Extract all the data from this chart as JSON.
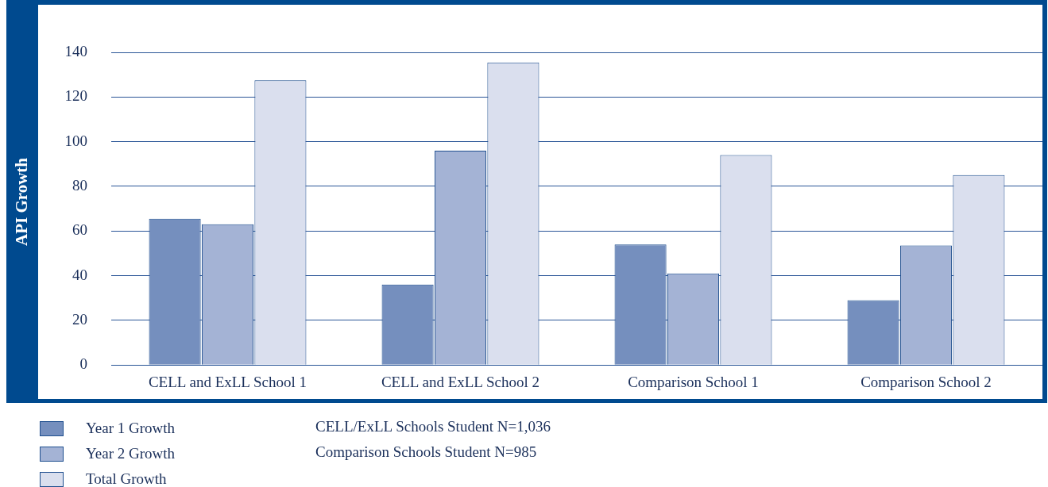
{
  "chart_data": {
    "type": "bar",
    "ylabel": "API Growth",
    "categories": [
      "CELL and ExLL School 1",
      "CELL and ExLL School 2",
      "Comparison School 1",
      "Comparison School 2"
    ],
    "series": [
      {
        "name": "Year 1 Growth",
        "color": "#758fbe",
        "values": [
          65.5,
          36,
          54,
          29
        ]
      },
      {
        "name": "Year 2 Growth",
        "color": "#a4b3d5",
        "values": [
          63,
          96,
          41,
          53.5
        ]
      },
      {
        "name": "Total Growth",
        "color": "#dadfee",
        "values": [
          127.5,
          135.5,
          94,
          85
        ]
      }
    ],
    "ylim": [
      0,
      140
    ],
    "yticks": [
      0,
      20,
      40,
      60,
      80,
      100,
      120,
      140
    ],
    "grid": "y",
    "legend": "bottom left",
    "annotations": [
      "CELL/ExLL Schools Student N=1,036",
      "Comparison Schools Student N=985"
    ]
  }
}
